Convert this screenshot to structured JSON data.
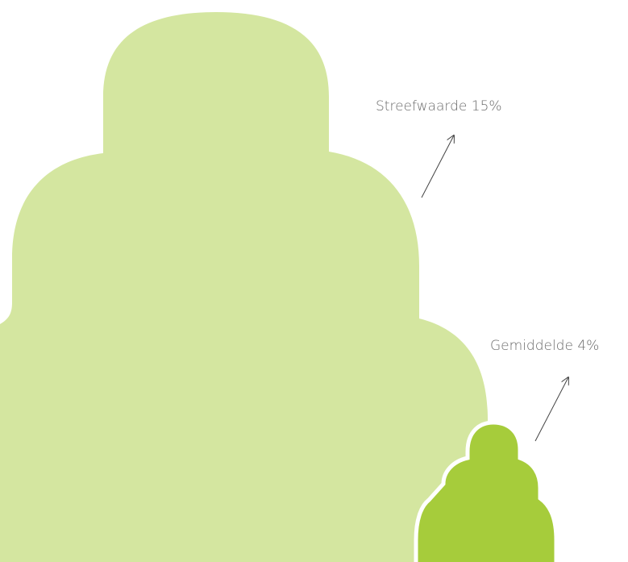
{
  "labels": [
    "Streefwaarde 15%",
    "Gemiddelde 4%"
  ]
}
